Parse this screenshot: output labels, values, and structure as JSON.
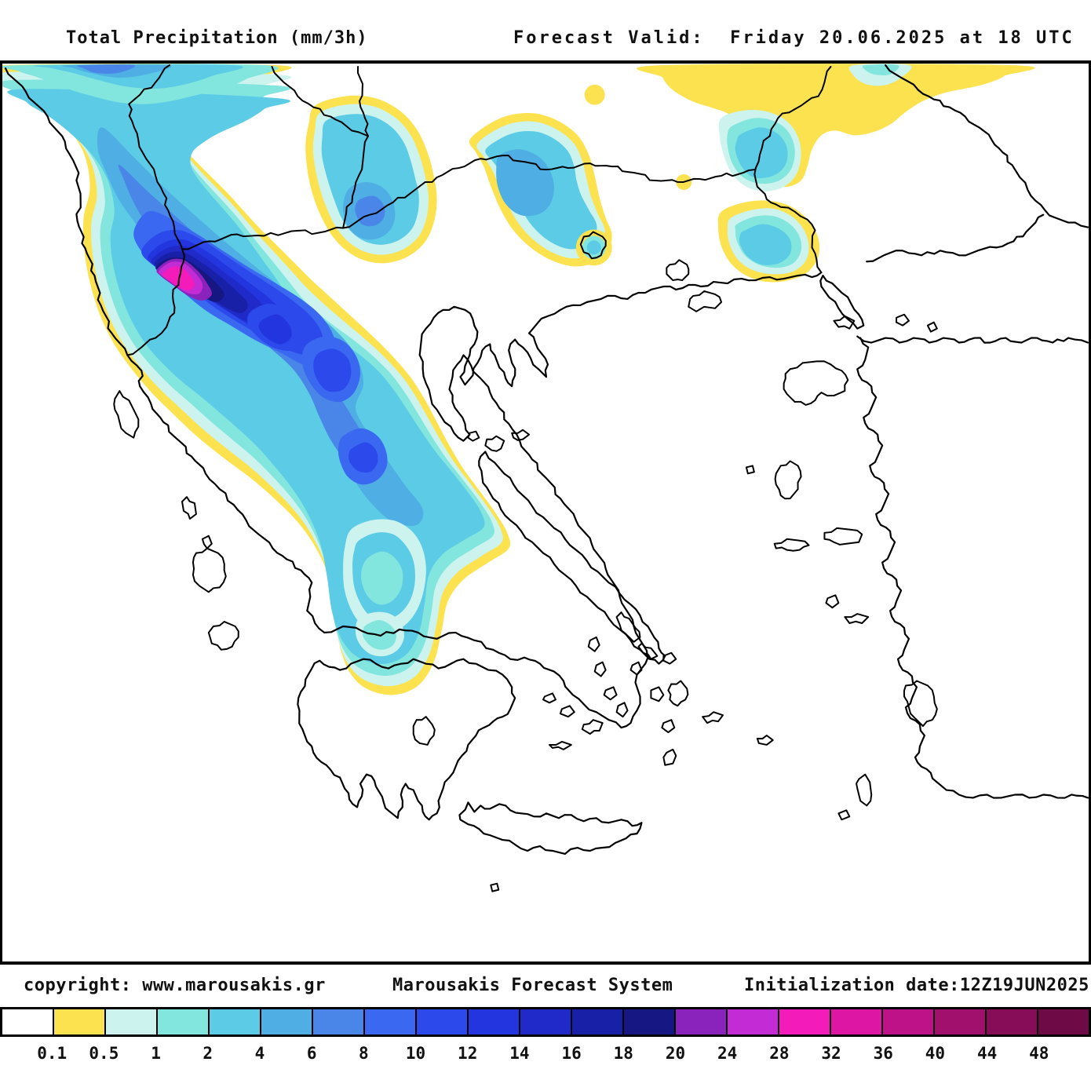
{
  "header": {
    "title": "Total Precipitation (mm/3h)",
    "valid_label": "Forecast Valid:",
    "valid_value": "Friday 20.06.2025 at 18 UTC",
    "valid_full": "Forecast Valid:  Friday 20.06.2025 at 18 UTC"
  },
  "footer": {
    "copyright": "copyright: www.marousakis.gr",
    "system": "Marousakis Forecast System",
    "init": "Initialization date:12Z19JUN2025"
  },
  "colorbar": {
    "unit": "mm/3h",
    "labels": [
      "0.1",
      "0.5",
      "1",
      "2",
      "4",
      "6",
      "8",
      "10",
      "12",
      "14",
      "16",
      "18",
      "20",
      "24",
      "28",
      "32",
      "36",
      "40",
      "44",
      "48"
    ],
    "cells": [
      "#FFFFFF",
      "#FBE24E",
      "#CDF3EF",
      "#82E6DE",
      "#5BCBE6",
      "#4FAEE3",
      "#4A86E8",
      "#3A68F0",
      "#2C49EC",
      "#2335DF",
      "#1F2AC8",
      "#1920A8",
      "#161782",
      "#8A22BC",
      "#C32BD4",
      "#F31CBB",
      "#DD17A4",
      "#BE1388",
      "#A2106E",
      "#880D58",
      "#6E0A46"
    ]
  },
  "map": {
    "region": "Greece and the Aegean",
    "line_color": "#000000",
    "sea_color": "#FFFFFF"
  }
}
